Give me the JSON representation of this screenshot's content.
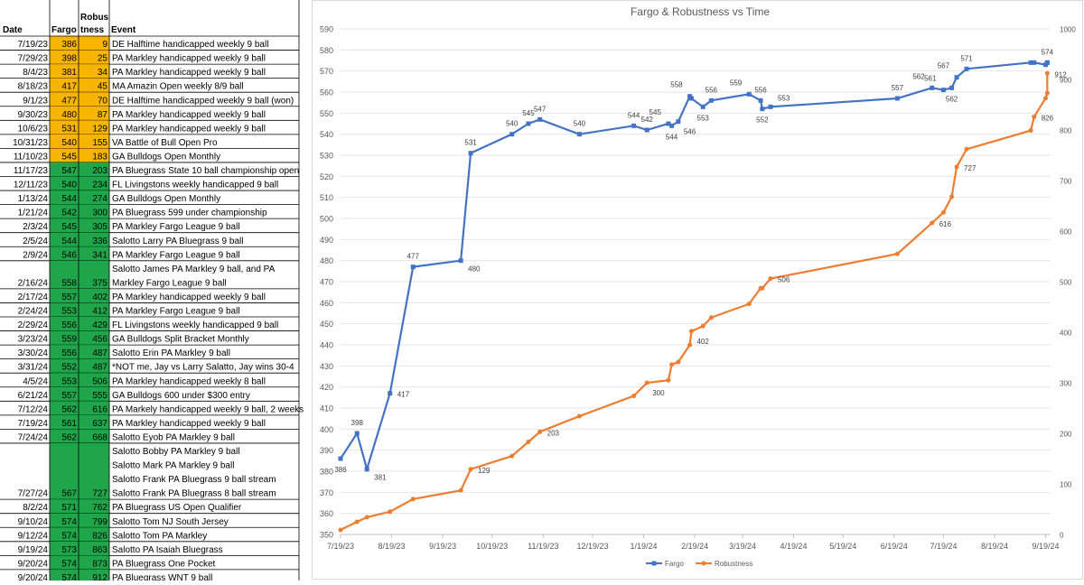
{
  "table": {
    "headers": {
      "date": "Date",
      "fargo": "Fargo",
      "robust1": "Robus",
      "robust2": "tness",
      "event": "Event"
    },
    "rows": [
      {
        "date": "7/19/23",
        "fargo": "386",
        "robust": "9",
        "event": [
          "DE Halftime handicapped weekly 9 ball"
        ],
        "color": "#f7b500"
      },
      {
        "date": "7/29/23",
        "fargo": "398",
        "robust": "25",
        "event": [
          "PA Markley handicapped weekly 9 ball"
        ],
        "color": "#f7b500"
      },
      {
        "date": "8/4/23",
        "fargo": "381",
        "robust": "34",
        "event": [
          "PA Markley handicapped weekly 9 ball"
        ],
        "color": "#f7b500"
      },
      {
        "date": "8/18/23",
        "fargo": "417",
        "robust": "45",
        "event": [
          "MA Amazin Open weekly 8/9 ball"
        ],
        "color": "#f7b500"
      },
      {
        "date": "9/1/23",
        "fargo": "477",
        "robust": "70",
        "event": [
          "DE Halftime handicapped weekly 9 ball (won)"
        ],
        "color": "#f7b500"
      },
      {
        "date": "9/30/23",
        "fargo": "480",
        "robust": "87",
        "event": [
          "PA Markley handicapped weekly 9 ball"
        ],
        "color": "#f7b500"
      },
      {
        "date": "10/6/23",
        "fargo": "531",
        "robust": "129",
        "event": [
          "PA Markley handicapped weekly 9 ball"
        ],
        "color": "#f7b500"
      },
      {
        "date": "10/31/23",
        "fargo": "540",
        "robust": "155",
        "event": [
          "VA Battle of Bull Open Pro"
        ],
        "color": "#f7b500"
      },
      {
        "date": "11/10/23",
        "fargo": "545",
        "robust": "183",
        "event": [
          "GA Bulldogs Open Monthly"
        ],
        "color": "#f7b500"
      },
      {
        "date": "11/17/23",
        "fargo": "547",
        "robust": "203",
        "event": [
          "PA Bluegrass State 10 ball championship open"
        ],
        "color": "#1fa64a"
      },
      {
        "date": "12/11/23",
        "fargo": "540",
        "robust": "234",
        "event": [
          "FL Livingstons weekly handicapped 9 ball"
        ],
        "color": "#1fa64a"
      },
      {
        "date": "1/13/24",
        "fargo": "544",
        "robust": "274",
        "event": [
          "GA Bulldogs Open Monthly"
        ],
        "color": "#1fa64a"
      },
      {
        "date": "1/21/24",
        "fargo": "542",
        "robust": "300",
        "event": [
          "PA Bluegrass 599 under championship"
        ],
        "color": "#1fa64a"
      },
      {
        "date": "2/3/24",
        "fargo": "545",
        "robust": "305",
        "event": [
          "PA Markley Fargo League 9 ball"
        ],
        "color": "#1fa64a"
      },
      {
        "date": "2/5/24",
        "fargo": "544",
        "robust": "336",
        "event": [
          "Salotto Larry PA Bluegrass 9 ball"
        ],
        "color": "#1fa64a"
      },
      {
        "date": "2/9/24",
        "fargo": "546",
        "robust": "341",
        "event": [
          "PA Markley Fargo League 9 ball"
        ],
        "color": "#1fa64a"
      },
      {
        "date": "2/16/24",
        "fargo": "558",
        "robust": "375",
        "event": [
          "Salotto James PA Markley 9 ball, and PA",
          "Markley Fargo League 9 ball"
        ],
        "color": "#1fa64a"
      },
      {
        "date": "2/17/24",
        "fargo": "557",
        "robust": "402",
        "event": [
          "PA Markley handicapped weekly 9 ball"
        ],
        "color": "#1fa64a"
      },
      {
        "date": "2/24/24",
        "fargo": "553",
        "robust": "412",
        "event": [
          "PA Markley Fargo League 9 ball"
        ],
        "color": "#1fa64a"
      },
      {
        "date": "2/29/24",
        "fargo": "556",
        "robust": "429",
        "event": [
          "FL Livingstons weekly handicapped 9 ball"
        ],
        "color": "#1fa64a"
      },
      {
        "date": "3/23/24",
        "fargo": "559",
        "robust": "456",
        "event": [
          "GA Bulldogs Split Bracket Monthly"
        ],
        "color": "#1fa64a"
      },
      {
        "date": "3/30/24",
        "fargo": "556",
        "robust": "487",
        "event": [
          "Salotto Erin PA Markley 9 ball"
        ],
        "color": "#1fa64a"
      },
      {
        "date": "3/31/24",
        "fargo": "552",
        "robust": "487",
        "event": [
          "*NOT me, Jay vs Larry Salatto, Jay wins 30-4"
        ],
        "color": "#1fa64a"
      },
      {
        "date": "4/5/24",
        "fargo": "553",
        "robust": "506",
        "event": [
          "PA Markley handicapped weekly 8 ball"
        ],
        "color": "#1fa64a"
      },
      {
        "date": "6/21/24",
        "fargo": "557",
        "robust": "555",
        "event": [
          "GA Bulldogs 600 under $300 entry"
        ],
        "color": "#1fa64a"
      },
      {
        "date": "7/12/24",
        "fargo": "562",
        "robust": "616",
        "event": [
          "PA Markely handicapped weekly 9 ball, 2 weeks"
        ],
        "color": "#1fa64a"
      },
      {
        "date": "7/19/24",
        "fargo": "561",
        "robust": "637",
        "event": [
          "PA Markley handicapped weekly 9 ball"
        ],
        "color": "#1fa64a"
      },
      {
        "date": "7/24/24",
        "fargo": "562",
        "robust": "668",
        "event": [
          "Salotto Eyob PA Markley 9 ball"
        ],
        "color": "#1fa64a"
      },
      {
        "date": "7/27/24",
        "fargo": "567",
        "robust": "727",
        "event": [
          "Salotto Bobby PA Markley 9 ball",
          "Salotto Mark PA Markley 9 ball",
          "Salotto Frank PA Bluegrass 9 ball stream",
          "Salotto Frank PA Bluegrass 8 ball stream"
        ],
        "color": "#1fa64a"
      },
      {
        "date": "8/2/24",
        "fargo": "571",
        "robust": "762",
        "event": [
          "PA Bluegrass US Open Qualifier"
        ],
        "color": "#1fa64a"
      },
      {
        "date": "9/10/24",
        "fargo": "574",
        "robust": "799",
        "event": [
          "Salotto Tom NJ South Jersey"
        ],
        "color": "#1fa64a"
      },
      {
        "date": "9/12/24",
        "fargo": "574",
        "robust": "826",
        "event": [
          "Salotto Tom PA Markley"
        ],
        "color": "#1fa64a"
      },
      {
        "date": "9/19/24",
        "fargo": "573",
        "robust": "863",
        "event": [
          "Salotto PA Isaiah Bluegrass"
        ],
        "color": "#1fa64a"
      },
      {
        "date": "9/20/24",
        "fargo": "574",
        "robust": "873",
        "event": [
          "PA Bluegrass One Pocket"
        ],
        "color": "#1fa64a"
      },
      {
        "date": "9/20/24",
        "fargo": "574",
        "robust": "912",
        "event": [
          "PA Bluegrass WNT 9 ball"
        ],
        "color": "#1fa64a"
      }
    ]
  },
  "chart_data": {
    "type": "line",
    "title": "Fargo & Robustness vs Time",
    "x_ticks": [
      "7/19/23",
      "8/19/23",
      "9/19/23",
      "10/19/23",
      "11/19/23",
      "12/19/23",
      "1/19/24",
      "2/19/24",
      "3/19/24",
      "4/19/24",
      "5/19/24",
      "6/19/24",
      "7/19/24",
      "8/19/24",
      "9/19/24"
    ],
    "xlim": [
      "7/19/23",
      "9/22/24"
    ],
    "y_left": {
      "min": 350,
      "max": 590,
      "step": 10
    },
    "y_right": {
      "min": 0,
      "max": 1000,
      "step": 100
    },
    "legend_position": "bottom",
    "series": [
      {
        "name": "Fargo",
        "axis": "left",
        "color": "#4472c4",
        "marker": "square",
        "points": [
          [
            "7/19/23",
            386
          ],
          [
            "7/29/23",
            398
          ],
          [
            "8/4/23",
            381
          ],
          [
            "8/18/23",
            417
          ],
          [
            "9/1/23",
            477
          ],
          [
            "9/30/23",
            480
          ],
          [
            "10/6/23",
            531
          ],
          [
            "10/31/23",
            540
          ],
          [
            "11/10/23",
            545
          ],
          [
            "11/17/23",
            547
          ],
          [
            "12/11/23",
            540
          ],
          [
            "1/13/24",
            544
          ],
          [
            "1/21/24",
            542
          ],
          [
            "2/3/24",
            545
          ],
          [
            "2/5/24",
            544
          ],
          [
            "2/9/24",
            546
          ],
          [
            "2/16/24",
            558
          ],
          [
            "2/17/24",
            557
          ],
          [
            "2/24/24",
            553
          ],
          [
            "2/29/24",
            556
          ],
          [
            "3/23/24",
            559
          ],
          [
            "3/30/24",
            556
          ],
          [
            "3/31/24",
            552
          ],
          [
            "4/5/24",
            553
          ],
          [
            "6/21/24",
            557
          ],
          [
            "7/12/24",
            562
          ],
          [
            "7/19/24",
            561
          ],
          [
            "7/24/24",
            562
          ],
          [
            "7/27/24",
            567
          ],
          [
            "8/2/24",
            571
          ],
          [
            "9/10/24",
            574
          ],
          [
            "9/12/24",
            574
          ],
          [
            "9/19/24",
            573
          ],
          [
            "9/20/24",
            574
          ],
          [
            "9/20/24",
            574
          ]
        ],
        "labels": [
          {
            "i": 0,
            "text": "386",
            "pos": "below"
          },
          {
            "i": 1,
            "text": "398",
            "pos": "above"
          },
          {
            "i": 2,
            "text": "381",
            "pos": "right-down"
          },
          {
            "i": 3,
            "text": "417",
            "pos": "right"
          },
          {
            "i": 4,
            "text": "477",
            "pos": "above"
          },
          {
            "i": 5,
            "text": "480",
            "pos": "right-down"
          },
          {
            "i": 6,
            "text": "531",
            "pos": "above"
          },
          {
            "i": 7,
            "text": "540",
            "pos": "above"
          },
          {
            "i": 8,
            "text": "545",
            "pos": "above"
          },
          {
            "i": 9,
            "text": "547",
            "pos": "above"
          },
          {
            "i": 10,
            "text": "540",
            "pos": "above"
          },
          {
            "i": 11,
            "text": "544",
            "pos": "above"
          },
          {
            "i": 12,
            "text": "542",
            "pos": "above"
          },
          {
            "i": 13,
            "text": "545",
            "pos": "above-left"
          },
          {
            "i": 14,
            "text": "544",
            "pos": "below"
          },
          {
            "i": 15,
            "text": "546",
            "pos": "below-right"
          },
          {
            "i": 16,
            "text": "558",
            "pos": "above-left"
          },
          {
            "i": 18,
            "text": "553",
            "pos": "below"
          },
          {
            "i": 19,
            "text": "556",
            "pos": "above"
          },
          {
            "i": 20,
            "text": "559",
            "pos": "above-left"
          },
          {
            "i": 21,
            "text": "556",
            "pos": "above"
          },
          {
            "i": 22,
            "text": "552",
            "pos": "below"
          },
          {
            "i": 23,
            "text": "553",
            "pos": "above-right"
          },
          {
            "i": 24,
            "text": "557",
            "pos": "above"
          },
          {
            "i": 25,
            "text": "562",
            "pos": "above-left"
          },
          {
            "i": 26,
            "text": "561",
            "pos": "above-left"
          },
          {
            "i": 27,
            "text": "562",
            "pos": "below"
          },
          {
            "i": 28,
            "text": "567",
            "pos": "above-left"
          },
          {
            "i": 29,
            "text": "571",
            "pos": "above"
          },
          {
            "i": 33,
            "text": "574",
            "pos": "above"
          }
        ]
      },
      {
        "name": "Robustness",
        "axis": "right",
        "color": "#ed7d31",
        "marker": "circle",
        "points": [
          [
            "7/19/23",
            9
          ],
          [
            "7/29/23",
            25
          ],
          [
            "8/4/23",
            34
          ],
          [
            "8/18/23",
            45
          ],
          [
            "9/1/23",
            70
          ],
          [
            "9/30/23",
            87
          ],
          [
            "10/6/23",
            129
          ],
          [
            "10/31/23",
            155
          ],
          [
            "11/10/23",
            183
          ],
          [
            "11/17/23",
            203
          ],
          [
            "12/11/23",
            234
          ],
          [
            "1/13/24",
            274
          ],
          [
            "1/21/24",
            300
          ],
          [
            "2/3/24",
            305
          ],
          [
            "2/5/24",
            336
          ],
          [
            "2/9/24",
            341
          ],
          [
            "2/16/24",
            375
          ],
          [
            "2/17/24",
            402
          ],
          [
            "2/24/24",
            412
          ],
          [
            "2/29/24",
            429
          ],
          [
            "3/23/24",
            456
          ],
          [
            "3/30/24",
            487
          ],
          [
            "3/31/24",
            487
          ],
          [
            "4/5/24",
            506
          ],
          [
            "6/21/24",
            555
          ],
          [
            "7/12/24",
            616
          ],
          [
            "7/19/24",
            637
          ],
          [
            "7/24/24",
            668
          ],
          [
            "7/27/24",
            727
          ],
          [
            "8/2/24",
            762
          ],
          [
            "9/10/24",
            799
          ],
          [
            "9/12/24",
            826
          ],
          [
            "9/19/24",
            863
          ],
          [
            "9/20/24",
            873
          ],
          [
            "9/20/24",
            912
          ]
        ],
        "labels": [
          {
            "i": 6,
            "text": "129",
            "pos": "right"
          },
          {
            "i": 9,
            "text": "203",
            "pos": "right"
          },
          {
            "i": 12,
            "text": "300",
            "pos": "below-right"
          },
          {
            "i": 17,
            "text": "402",
            "pos": "below-right"
          },
          {
            "i": 23,
            "text": "506",
            "pos": "right"
          },
          {
            "i": 25,
            "text": "616",
            "pos": "right"
          },
          {
            "i": 28,
            "text": "727",
            "pos": "right"
          },
          {
            "i": 31,
            "text": "826",
            "pos": "right"
          },
          {
            "i": 34,
            "text": "912",
            "pos": "right"
          }
        ]
      }
    ]
  }
}
